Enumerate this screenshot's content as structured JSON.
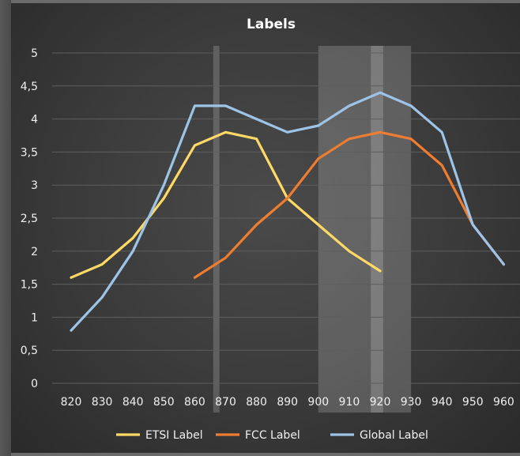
{
  "chart_data": {
    "type": "line",
    "title": "Labels",
    "xlabel": "",
    "ylabel": "",
    "x": [
      820,
      830,
      840,
      850,
      860,
      870,
      880,
      890,
      900,
      910,
      920,
      930,
      940,
      950,
      960
    ],
    "x_tick_labels": [
      "820",
      "830",
      "840",
      "850",
      "860",
      "870",
      "880",
      "890",
      "900",
      "910",
      "920",
      "930",
      "940",
      "950",
      "960"
    ],
    "ylim": [
      0,
      5
    ],
    "y_tick_labels": [
      "0",
      "0,5",
      "1",
      "1,5",
      "2",
      "2,5",
      "3",
      "3,5",
      "4",
      "4,5",
      "5"
    ],
    "grid": true,
    "legend_position": "bottom",
    "series": [
      {
        "name": "ETSI Label",
        "color": "#ffd966",
        "values": [
          1.6,
          1.8,
          2.2,
          2.8,
          3.6,
          3.8,
          3.7,
          2.8,
          2.4,
          2.0,
          1.7,
          null,
          null,
          null,
          null
        ]
      },
      {
        "name": "FCC Label",
        "color": "#ed7d31",
        "values": [
          null,
          null,
          null,
          null,
          1.6,
          1.9,
          2.4,
          2.8,
          3.4,
          3.7,
          3.8,
          3.7,
          3.3,
          2.4,
          1.8
        ]
      },
      {
        "name": "Global Label",
        "color": "#9dc3e6",
        "values": [
          0.8,
          1.3,
          2.0,
          3.0,
          4.2,
          4.2,
          4.0,
          3.8,
          3.9,
          4.2,
          4.4,
          4.2,
          3.8,
          2.4,
          1.8
        ]
      }
    ],
    "highlight_bands": [
      {
        "x_from": 866,
        "x_to": 868
      },
      {
        "x_from": 900,
        "x_to": 930
      },
      {
        "x_from": 917,
        "x_to": 921
      }
    ]
  }
}
